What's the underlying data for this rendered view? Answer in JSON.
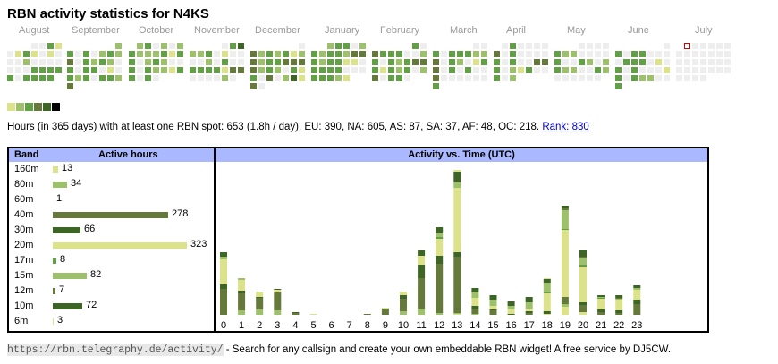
{
  "title": "RBN activity statistics for N4KS",
  "months": [
    "August",
    "September",
    "October",
    "November",
    "December",
    "January",
    "February",
    "March",
    "April",
    "May",
    "June",
    "July"
  ],
  "palette": {
    "empty": "#eeeeee",
    "levels": [
      "#dbe28a",
      "#9dc16b",
      "#62a045",
      "#65793b",
      "#3d6526",
      "#000000"
    ],
    "today_marker": "#dd0000",
    "header_bg": "#aab8ff"
  },
  "heatmap": {
    "note": "per month: rows of 7 day-cells; 0=no activity,1-6 level, null=no cell",
    "months": [
      [
        [
          null,
          null,
          null,
          0,
          0,
          3,
          1
        ],
        [
          0,
          1,
          3,
          1,
          0,
          1,
          0
        ],
        [
          0,
          0,
          2,
          0,
          0,
          0,
          0
        ],
        [
          0,
          0,
          0,
          3,
          3,
          3,
          3
        ],
        [
          3,
          0,
          3,
          3,
          3,
          3,
          null
        ]
      ],
      [
        [
          null,
          null,
          null,
          null,
          null,
          null,
          2
        ],
        [
          3,
          0,
          3,
          0,
          2,
          3,
          2
        ],
        [
          4,
          0,
          3,
          2,
          3,
          2,
          0
        ],
        [
          3,
          0,
          3,
          3,
          0,
          1,
          0
        ],
        [
          3,
          2,
          3,
          0,
          3,
          3,
          2
        ],
        [
          4,
          null,
          null,
          null,
          null,
          null,
          null
        ]
      ],
      [
        [
          null,
          2,
          3,
          0,
          2,
          0,
          2
        ],
        [
          3,
          2,
          2,
          2,
          3,
          1,
          3
        ],
        [
          3,
          0,
          2,
          3,
          2,
          0,
          0
        ],
        [
          3,
          0,
          3,
          2,
          2,
          1,
          3
        ],
        [
          3,
          0,
          3,
          0,
          null,
          null,
          null
        ]
      ],
      [
        [
          null,
          null,
          null,
          null,
          0,
          3,
          5
        ],
        [
          2,
          2,
          3,
          0,
          1,
          0,
          0
        ],
        [
          0,
          0,
          2,
          0,
          3,
          0,
          0
        ],
        [
          3,
          3,
          3,
          3,
          1,
          4,
          4
        ],
        [
          0,
          0,
          0,
          0,
          2,
          0,
          null
        ]
      ],
      [
        [
          null,
          null,
          null,
          null,
          null,
          null,
          0
        ],
        [
          4,
          2,
          3,
          2,
          3,
          1,
          2
        ],
        [
          4,
          2,
          3,
          3,
          4,
          4,
          4
        ],
        [
          4,
          2,
          3,
          2,
          0,
          3,
          1
        ],
        [
          3,
          0,
          4,
          0,
          2,
          5,
          1
        ],
        [
          4,
          0,
          null,
          null,
          null,
          null,
          null
        ]
      ],
      [
        [
          null,
          null,
          2,
          3,
          3,
          0,
          2
        ],
        [
          3,
          2,
          3,
          3,
          2,
          4,
          4
        ],
        [
          3,
          2,
          3,
          3,
          1,
          1,
          0
        ],
        [
          3,
          3,
          3,
          3,
          0,
          0,
          0
        ],
        [
          3,
          3,
          3,
          2,
          1,
          null,
          null
        ]
      ],
      [
        [
          null,
          null,
          null,
          null,
          null,
          3,
          0
        ],
        [
          4,
          3,
          3,
          3,
          0,
          0,
          2
        ],
        [
          3,
          0,
          3,
          2,
          3,
          4,
          4
        ],
        [
          3,
          1,
          3,
          2,
          3,
          0,
          2
        ],
        [
          4,
          0,
          3,
          3,
          0,
          null,
          null
        ]
      ],
      [
        [
          null,
          null,
          null,
          null,
          null,
          0,
          0
        ],
        [
          3,
          0,
          3,
          3,
          3,
          2,
          2
        ],
        [
          4,
          0,
          3,
          2,
          0,
          1,
          3
        ],
        [
          4,
          0,
          3,
          0,
          3,
          0,
          0
        ],
        [
          4,
          0,
          0,
          0,
          0,
          0,
          0
        ],
        [
          3,
          null,
          null,
          null,
          null,
          null,
          null
        ]
      ],
      [
        [
          null,
          0,
          3,
          0,
          0,
          0,
          0
        ],
        [
          4,
          0,
          3,
          0,
          0,
          0,
          0
        ],
        [
          3,
          0,
          3,
          0,
          0,
          4,
          4
        ],
        [
          3,
          0,
          2,
          1,
          3,
          0,
          0
        ],
        [
          3,
          0,
          2,
          null,
          null,
          null,
          null
        ]
      ],
      [
        [
          null,
          null,
          null,
          0,
          0,
          0,
          0
        ],
        [
          3,
          2,
          2,
          0,
          0,
          0,
          0
        ],
        [
          3,
          0,
          0,
          3,
          2,
          0,
          2
        ],
        [
          3,
          2,
          2,
          0,
          0,
          3,
          2
        ],
        [
          0,
          0,
          0,
          0,
          0,
          0,
          null
        ]
      ],
      [
        [
          null,
          null,
          null,
          null,
          null,
          null,
          0
        ],
        [
          3,
          0,
          3,
          3,
          0,
          0,
          0
        ],
        [
          0,
          3,
          3,
          3,
          0,
          1,
          0
        ],
        [
          3,
          0,
          3,
          0,
          0,
          0,
          1
        ],
        [
          3,
          0,
          3,
          2,
          2,
          0,
          0
        ],
        [
          3,
          null,
          null,
          null,
          null,
          null,
          null
        ]
      ],
      [
        [
          null,
          "today",
          0,
          0,
          0,
          0,
          0
        ],
        [
          0,
          0,
          0,
          0,
          0,
          0,
          0
        ],
        [
          0,
          0,
          0,
          0,
          0,
          0,
          0
        ],
        [
          0,
          0,
          0,
          0,
          0,
          0,
          0
        ],
        [
          0,
          0,
          0,
          0,
          null,
          null,
          null
        ]
      ]
    ]
  },
  "stats": {
    "text": "Hours (in 365 days) with at least one RBN spot: 653 (1.8h / day). EU: 390, NA: 605, AS: 87, SA: 37, AF: 48, OC: 218.",
    "rank_link": "Rank: 830"
  },
  "band_table": {
    "header_band": "Band",
    "header_hours": "Active hours",
    "rows": [
      {
        "band": "160m",
        "hours": 13,
        "color": "#dbe28a"
      },
      {
        "band": "80m",
        "hours": 34,
        "color": "#9dc16b"
      },
      {
        "band": "60m",
        "hours": 1,
        "color": "#62a045"
      },
      {
        "band": "40m",
        "hours": 278,
        "color": "#65793b"
      },
      {
        "band": "30m",
        "hours": 66,
        "color": "#3d6526"
      },
      {
        "band": "20m",
        "hours": 323,
        "color": "#dbe28a"
      },
      {
        "band": "17m",
        "hours": 8,
        "color": "#62a045"
      },
      {
        "band": "15m",
        "hours": 82,
        "color": "#9dc16b"
      },
      {
        "band": "12m",
        "hours": 7,
        "color": "#65793b"
      },
      {
        "band": "10m",
        "hours": 72,
        "color": "#3d6526"
      },
      {
        "band": "6m",
        "hours": 3,
        "color": "#dbe28a"
      }
    ]
  },
  "chart_data": {
    "type": "bar",
    "stacked": true,
    "title": "Activity vs. Time (UTC)",
    "xlabel": "",
    "ylabel": "",
    "categories": [
      "0",
      "1",
      "2",
      "3",
      "4",
      "5",
      "6",
      "7",
      "8",
      "9",
      "10",
      "11",
      "12",
      "13",
      "14",
      "15",
      "16",
      "17",
      "18",
      "19",
      "20",
      "21",
      "22",
      "23"
    ],
    "note": "relative activity per UTC hour, stacked by band (bottom to top)",
    "stacks": [
      [
        [
          "40m",
          29
        ],
        [
          "30m",
          5
        ],
        [
          "20m",
          28
        ],
        [
          "15m",
          3
        ],
        [
          "10m",
          5
        ]
      ],
      [
        [
          "15m",
          5
        ],
        [
          "40m",
          19
        ],
        [
          "30m",
          3
        ],
        [
          "20m",
          12
        ],
        [
          "15m",
          2
        ]
      ],
      [
        [
          "15m",
          6
        ],
        [
          "40m",
          13
        ],
        [
          "30m",
          1
        ],
        [
          "20m",
          5
        ],
        [
          "15m",
          1
        ]
      ],
      [
        [
          "15m",
          5
        ],
        [
          "40m",
          20
        ],
        [
          "20m",
          3
        ],
        [
          "10m",
          1
        ]
      ],
      [
        [
          "40m",
          2
        ],
        [
          "30m",
          1
        ]
      ],
      [
        [
          "20m",
          1
        ]
      ],
      [],
      [],
      [
        [
          "40m",
          1
        ]
      ],
      [
        [
          "40m",
          6
        ],
        [
          "30m",
          1
        ],
        [
          "20m",
          1
        ]
      ],
      [
        [
          "15m",
          4
        ],
        [
          "40m",
          14
        ],
        [
          "30m",
          4
        ],
        [
          "20m",
          4
        ]
      ],
      [
        [
          "15m",
          7
        ],
        [
          "40m",
          34
        ],
        [
          "30m",
          15
        ],
        [
          "20m",
          10
        ],
        [
          "10m",
          6
        ]
      ],
      [
        [
          "15m",
          2
        ],
        [
          "40m",
          55
        ],
        [
          "30m",
          9
        ],
        [
          "20m",
          19
        ],
        [
          "17m",
          2
        ],
        [
          "15m",
          4
        ],
        [
          "10m",
          7
        ]
      ],
      [
        [
          "20m",
          1
        ],
        [
          "15m",
          1
        ],
        [
          "40m",
          63
        ],
        [
          "30m",
          5
        ],
        [
          "20m",
          72
        ],
        [
          "15m",
          6
        ],
        [
          "12m",
          1
        ],
        [
          "10m",
          11
        ],
        [
          "20m",
          2
        ]
      ],
      [
        [
          "15m",
          1
        ],
        [
          "40m",
          5
        ],
        [
          "30m",
          4
        ],
        [
          "20m",
          9
        ],
        [
          "15m",
          7
        ],
        [
          "10m",
          4
        ]
      ],
      [
        [
          "40m",
          5
        ],
        [
          "30m",
          1
        ],
        [
          "20m",
          4
        ],
        [
          "15m",
          7
        ],
        [
          "10m",
          5
        ]
      ],
      [
        [
          "30m",
          1
        ],
        [
          "20m",
          5
        ],
        [
          "15m",
          4
        ],
        [
          "10m",
          5
        ]
      ],
      [
        [
          "40m",
          2
        ],
        [
          "30m",
          2
        ],
        [
          "20m",
          3
        ],
        [
          "15m",
          7
        ],
        [
          "10m",
          6
        ]
      ],
      [
        [
          "20m",
          1
        ],
        [
          "30m",
          3
        ],
        [
          "20m",
          20
        ],
        [
          "17m",
          1
        ],
        [
          "15m",
          11
        ],
        [
          "10m",
          4
        ],
        [
          "20m",
          1
        ]
      ],
      [
        [
          "20m",
          9
        ],
        [
          "15m",
          3
        ],
        [
          "40m",
          8
        ],
        [
          "20m",
          75
        ],
        [
          "17m",
          1
        ],
        [
          "15m",
          21
        ],
        [
          "12m",
          2
        ],
        [
          "10m",
          3
        ]
      ],
      [
        [
          "20m",
          3
        ],
        [
          "40m",
          8
        ],
        [
          "30m",
          3
        ],
        [
          "20m",
          40
        ],
        [
          "17m",
          2
        ],
        [
          "15m",
          8
        ],
        [
          "12m",
          1
        ],
        [
          "10m",
          7
        ]
      ],
      [
        [
          "40m",
          3
        ],
        [
          "30m",
          3
        ],
        [
          "20m",
          12
        ],
        [
          "17m",
          1
        ],
        [
          "15m",
          1
        ],
        [
          "10m",
          2
        ]
      ],
      [
        [
          "40m",
          2
        ],
        [
          "30m",
          3
        ],
        [
          "20m",
          12
        ],
        [
          "15m",
          1
        ],
        [
          "12m",
          1
        ],
        [
          "10m",
          3
        ]
      ],
      [
        [
          "40m",
          12
        ],
        [
          "30m",
          5
        ],
        [
          "20m",
          11
        ],
        [
          "15m",
          2
        ],
        [
          "10m",
          3
        ]
      ]
    ],
    "ylim": [
      0,
      170
    ]
  },
  "footer": {
    "url": "https://rbn.telegraphy.de/activity/",
    "text": " - Search for any callsign and create your own embeddable RBN widget! A free service by DJ5CW."
  }
}
